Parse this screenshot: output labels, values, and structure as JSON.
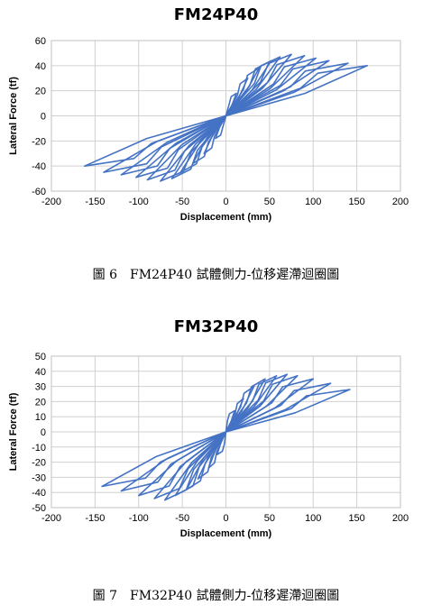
{
  "chart_data": [
    {
      "type": "line",
      "title": "FM24P40",
      "xlabel": "Displacement (mm)",
      "ylabel": "Lateral Force (tf)",
      "xlim": [
        -200,
        200
      ],
      "ylim": [
        -60,
        60
      ],
      "xticks": [
        -200,
        -150,
        -100,
        -50,
        0,
        50,
        100,
        150,
        200
      ],
      "yticks": [
        -60,
        -40,
        -20,
        0,
        20,
        40,
        60
      ],
      "grid": true,
      "color": "#4472c4",
      "loops": [
        {
          "peak_pos": [
            12,
            18
          ],
          "peak_neg": [
            -12,
            -18
          ]
        },
        {
          "peak_pos": [
            25,
            30
          ],
          "peak_neg": [
            -25,
            -30
          ]
        },
        {
          "peak_pos": [
            38,
            38
          ],
          "peak_neg": [
            -38,
            -38
          ]
        },
        {
          "peak_pos": [
            52,
            44
          ],
          "peak_neg": [
            -52,
            -45
          ]
        },
        {
          "peak_pos": [
            62,
            47
          ],
          "peak_neg": [
            -62,
            -50
          ]
        },
        {
          "peak_pos": [
            75,
            49
          ],
          "peak_neg": [
            -75,
            -52
          ]
        },
        {
          "peak_pos": [
            90,
            48
          ],
          "peak_neg": [
            -90,
            -51
          ]
        },
        {
          "peak_pos": [
            103,
            46
          ],
          "peak_neg": [
            -103,
            -49
          ]
        },
        {
          "peak_pos": [
            118,
            44
          ],
          "peak_neg": [
            -120,
            -47
          ]
        },
        {
          "peak_pos": [
            140,
            42
          ],
          "peak_neg": [
            -140,
            -45
          ]
        },
        {
          "peak_pos": [
            162,
            40
          ],
          "peak_neg": [
            -162,
            -40
          ]
        }
      ]
    },
    {
      "type": "line",
      "title": "FM32P40",
      "xlabel": "Displacement (mm)",
      "ylabel": "Lateral Force (tf)",
      "xlim": [
        -200,
        200
      ],
      "ylim": [
        -50,
        50
      ],
      "xticks": [
        -200,
        -150,
        -100,
        -50,
        0,
        50,
        100,
        150,
        200
      ],
      "yticks": [
        -50,
        -40,
        -30,
        -20,
        -10,
        0,
        10,
        20,
        30,
        40,
        50
      ],
      "grid": true,
      "color": "#4472c4",
      "loops": [
        {
          "peak_pos": [
            10,
            14
          ],
          "peak_neg": [
            -10,
            -15
          ]
        },
        {
          "peak_pos": [
            20,
            22
          ],
          "peak_neg": [
            -20,
            -24
          ]
        },
        {
          "peak_pos": [
            32,
            30
          ],
          "peak_neg": [
            -32,
            -31
          ]
        },
        {
          "peak_pos": [
            45,
            35
          ],
          "peak_neg": [
            -45,
            -38
          ]
        },
        {
          "peak_pos": [
            58,
            37
          ],
          "peak_neg": [
            -58,
            -42
          ]
        },
        {
          "peak_pos": [
            70,
            38
          ],
          "peak_neg": [
            -70,
            -45
          ]
        },
        {
          "peak_pos": [
            82,
            37
          ],
          "peak_neg": [
            -82,
            -44
          ]
        },
        {
          "peak_pos": [
            100,
            35
          ],
          "peak_neg": [
            -100,
            -42
          ]
        },
        {
          "peak_pos": [
            120,
            32
          ],
          "peak_neg": [
            -120,
            -39
          ]
        },
        {
          "peak_pos": [
            142,
            28
          ],
          "peak_neg": [
            -142,
            -36
          ]
        }
      ]
    }
  ],
  "captions": [
    "圖 6　FM24P40 試體側力-位移遲滯迴圈圖",
    "圖 7　FM32P40 試體側力-位移遲滯迴圈圖"
  ]
}
